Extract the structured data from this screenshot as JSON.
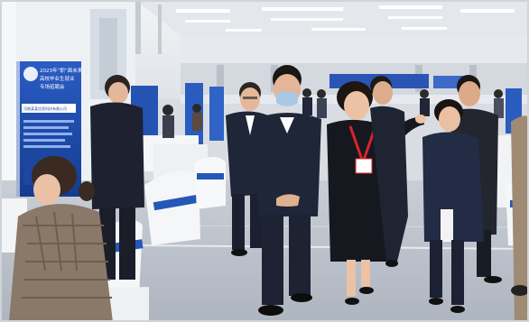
{
  "photo": {
    "poster_left": {
      "line1": "2023年“职”面未来",
      "line2": "高校毕业生就业",
      "line3": "专场招聘会",
      "company": "河南某某信息科技有限公司"
    }
  },
  "colors": {
    "ceiling": "#e9ecef",
    "floor": "#bcc3cc",
    "poster_blue": "#1a4aa8",
    "chair_white": "#f4f6f8",
    "chair_blue": "#2457b8",
    "suit_navy": "#1f2638",
    "lanyard_red": "#d9242b"
  }
}
